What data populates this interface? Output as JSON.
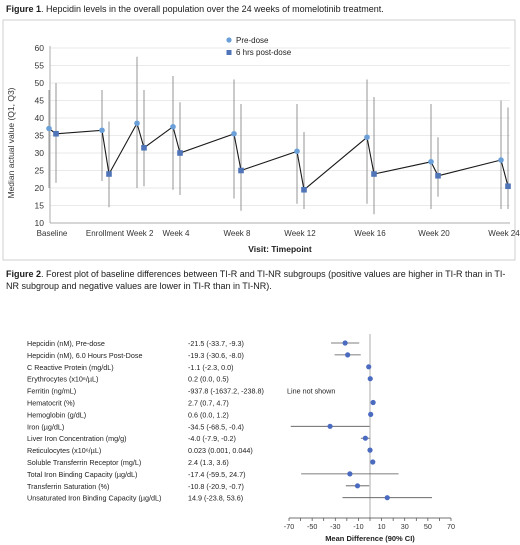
{
  "figure1": {
    "caption_label": "Figure 1",
    "caption_text": ". Hepcidin levels in the overall population over the 24 weeks of momelotinib treatment."
  },
  "figure2": {
    "caption_label": "Figure 2",
    "caption_text": ". Forest plot of baseline differences between TI-R and TI-NR subgroups (positive values are higher in TI-R than in TI-NR subgroup and negative values are lower in TI-R than in TI-NR)."
  },
  "chart_data": [
    {
      "type": "line",
      "title": "",
      "xlabel": "Visit: Timepoint",
      "ylabel": "Median actual value (Q1, Q3)",
      "ylim": [
        10,
        60
      ],
      "yticks": [
        10,
        15,
        20,
        25,
        30,
        35,
        40,
        45,
        50,
        55,
        60
      ],
      "categories": [
        "Baseline",
        "Enrollment",
        "Week 2",
        "Week 4",
        "Week 8",
        "Week 12",
        "Week 16",
        "Week 20",
        "Week 24"
      ],
      "legend": "top-left",
      "series": [
        {
          "name": "Pre-dose",
          "color": "#6a9fd8",
          "marker": "circle",
          "values": [
            37.0,
            36.5,
            38.5,
            37.5,
            35.5,
            30.5,
            34.5,
            27.5,
            28.0
          ],
          "q1": [
            20.0,
            22.0,
            20.0,
            19.5,
            17.0,
            15.5,
            15.5,
            14.0,
            14.0
          ],
          "q3": [
            48.0,
            48.0,
            57.5,
            52.0,
            51.0,
            44.0,
            51.0,
            44.0,
            45.0
          ]
        },
        {
          "name": "6 hrs post-dose",
          "color": "#4f74b8",
          "marker": "square",
          "values": [
            35.5,
            24.0,
            31.5,
            30.0,
            25.0,
            19.5,
            24.0,
            23.5,
            20.5
          ],
          "q1": [
            21.5,
            14.5,
            20.5,
            18.0,
            13.5,
            14.0,
            12.5,
            17.5,
            14.0
          ],
          "q3": [
            50.0,
            39.0,
            48.0,
            44.5,
            44.0,
            36.0,
            46.0,
            34.5,
            43.0
          ]
        }
      ]
    },
    {
      "type": "scatter",
      "subtype": "forest",
      "xlabel": "Mean Difference (90% CI)",
      "xlim": [
        -70,
        70
      ],
      "xticks": [
        -70,
        -50,
        -30,
        -10,
        10,
        30,
        50,
        70
      ],
      "point_color": "#4a6bc0",
      "rows": [
        {
          "label": "Hepcidin (nM), Pre-dose",
          "value_text": "-21.5 (-33.7, -9.3)",
          "est": -21.5,
          "lo": -33.7,
          "hi": -9.3,
          "note": ""
        },
        {
          "label": "Hepcidin (nM), 6.0 Hours Post-Dose",
          "value_text": "-19.3 (-30.6, -8.0)",
          "est": -19.3,
          "lo": -30.6,
          "hi": -8.0,
          "note": ""
        },
        {
          "label": "C Reactive Protein (mg/dL)",
          "value_text": "-1.1 (-2.3, 0.0)",
          "est": -1.1,
          "lo": -2.3,
          "hi": 0.0,
          "note": ""
        },
        {
          "label": "Erythrocytes (x10⁶/µL)",
          "value_text": "0.2 (0.0, 0.5)",
          "est": 0.2,
          "lo": 0.0,
          "hi": 0.5,
          "note": ""
        },
        {
          "label": "Ferritin (ng/mL)",
          "value_text": "-937.8 (-1637.2, -238.8)",
          "est": null,
          "lo": null,
          "hi": null,
          "note": "Line not shown"
        },
        {
          "label": "Hematocrit (%)",
          "value_text": "2.7 (0.7, 4.7)",
          "est": 2.7,
          "lo": 0.7,
          "hi": 4.7,
          "note": ""
        },
        {
          "label": "Hemoglobin (g/dL)",
          "value_text": "0.6 (0.0, 1.2)",
          "est": 0.6,
          "lo": 0.0,
          "hi": 1.2,
          "note": ""
        },
        {
          "label": "Iron (µg/dL)",
          "value_text": "-34.5 (-68.5, -0.4)",
          "est": -34.5,
          "lo": -68.5,
          "hi": -0.4,
          "note": ""
        },
        {
          "label": "Liver Iron Concentration (mg/g)",
          "value_text": "-4.0 (-7.9, -0.2)",
          "est": -4.0,
          "lo": -7.9,
          "hi": -0.2,
          "note": ""
        },
        {
          "label": "Reticulocytes (x10⁶/µL)",
          "value_text": "0.023 (0.001, 0.044)",
          "est": 0.023,
          "lo": 0.001,
          "hi": 0.044,
          "note": ""
        },
        {
          "label": "Soluble Transferrin Receptor (mg/L)",
          "value_text": "2.4 (1.3, 3.6)",
          "est": 2.4,
          "lo": 1.3,
          "hi": 3.6,
          "note": ""
        },
        {
          "label": "Total Iron Binding Capacity (µg/dL)",
          "value_text": "-17.4 (-59.5, 24.7)",
          "est": -17.4,
          "lo": -59.5,
          "hi": 24.7,
          "note": ""
        },
        {
          "label": "Transferrin Saturation (%)",
          "value_text": "-10.8 (-20.9, -0.7)",
          "est": -10.8,
          "lo": -20.9,
          "hi": -0.7,
          "note": ""
        },
        {
          "label": "Unsaturated Iron Binding Capacity (µg/dL)",
          "value_text": "14.9 (-23.8, 53.6)",
          "est": 14.9,
          "lo": -23.8,
          "hi": 53.6,
          "note": ""
        }
      ]
    }
  ]
}
